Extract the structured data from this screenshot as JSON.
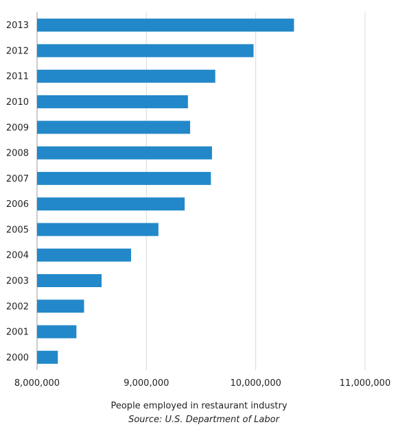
{
  "chart_data": {
    "type": "bar",
    "orientation": "horizontal",
    "categories": [
      "2013",
      "2012",
      "2011",
      "2010",
      "2009",
      "2008",
      "2007",
      "2006",
      "2005",
      "2004",
      "2003",
      "2002",
      "2001",
      "2000"
    ],
    "values": [
      10350000,
      9980000,
      9630000,
      9380000,
      9400000,
      9600000,
      9590000,
      9350000,
      9110000,
      8860000,
      8590000,
      8430000,
      8360000,
      8190000
    ],
    "xlabel": "People employed in restaurant industry",
    "source": "Source: U.S. Department of Labor",
    "xlim": [
      8000000,
      11000000
    ],
    "x_ticks": [
      8000000,
      9000000,
      10000000,
      11000000
    ],
    "x_tick_labels": [
      "8,000,000",
      "9,000,000",
      "10,000,000",
      "11,000,000"
    ],
    "grid": true,
    "colors": {
      "bar": "#2288c9",
      "grid": "#d9d9d9",
      "axis": "#999999"
    }
  }
}
